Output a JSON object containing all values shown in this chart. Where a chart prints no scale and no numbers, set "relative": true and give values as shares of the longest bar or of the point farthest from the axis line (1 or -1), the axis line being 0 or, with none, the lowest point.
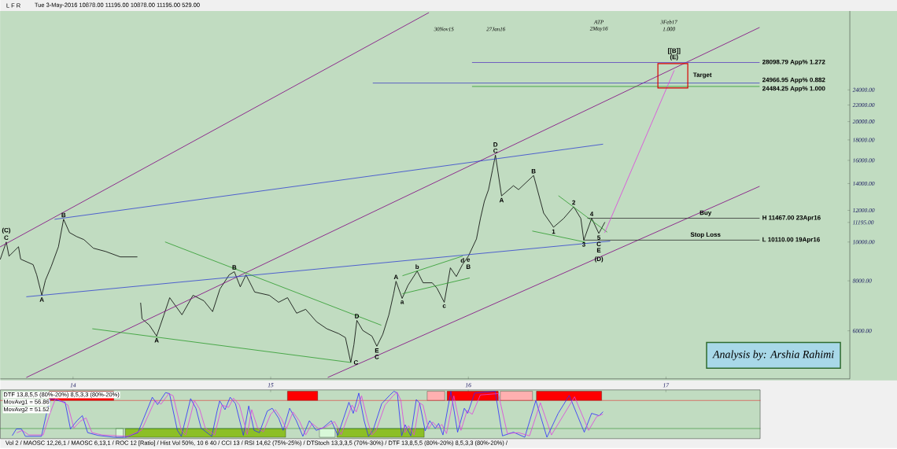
{
  "chart_data": [
    {
      "type": "line",
      "log": "y",
      "xlim": [
        13.632,
        17.93
      ],
      "ylim": [
        4550,
        37800
      ],
      "tick_labels": "y",
      "xticks": [
        14,
        15,
        16,
        17
      ],
      "yticks": [
        {
          "value": 6000,
          "label": "6000.00"
        },
        {
          "value": 8000,
          "label": "8000.00"
        },
        {
          "value": 10000,
          "label": "10000.00"
        },
        {
          "value": 11195,
          "label": "11195.00"
        },
        {
          "value": 12000,
          "label": "12000.00"
        },
        {
          "value": 14000,
          "label": "14000.00"
        },
        {
          "value": 16000,
          "label": "16000.00"
        },
        {
          "value": 18000,
          "label": "18000.00"
        },
        {
          "value": 20000,
          "label": "20000.00"
        },
        {
          "value": 22000,
          "label": "22000.00"
        },
        {
          "value": 24000,
          "label": "24000.00"
        }
      ],
      "series": [
        {
          "color": "#000000",
          "x": [
            13.632,
            13.662,
            13.676,
            13.724,
            13.735,
            13.798,
            13.816,
            13.842,
            13.86,
            13.89,
            13.926,
            13.952,
            13.982,
            14.018,
            14.055,
            14.103,
            14.165,
            14.239,
            14.324,
            14.331,
            14.342,
            14.349,
            14.386,
            14.423,
            14.46,
            14.489,
            14.551,
            14.607,
            14.662,
            14.706,
            14.743,
            14.79,
            14.816,
            14.846,
            14.875,
            14.919,
            14.993,
            15.04,
            15.085,
            15.131,
            15.177,
            15.232,
            15.284,
            15.345,
            15.378,
            15.405,
            15.421,
            15.436,
            15.466,
            15.512,
            15.537,
            15.567,
            15.598,
            15.622,
            15.634,
            15.665,
            15.695,
            15.741,
            15.771,
            15.817,
            15.841,
            15.878,
            15.909,
            15.939,
            15.97,
            16.0,
            16.041,
            16.061,
            16.081,
            16.102,
            16.122,
            16.137,
            16.168,
            16.228,
            16.254,
            16.33,
            16.381,
            16.431,
            16.482,
            16.533,
            16.569,
            16.584,
            16.624,
            16.66,
            16.69
          ],
          "values": [
            9060,
            10000,
            9220,
            9730,
            9060,
            8780,
            8280,
            7360,
            8020,
            8700,
            9730,
            11400,
            10560,
            10320,
            10140,
            9650,
            9470,
            9180,
            9180,
            null,
            7040,
            6430,
            6200,
            5820,
            6580,
            7260,
            6580,
            7360,
            7130,
            6700,
            7630,
            8280,
            8430,
            7730,
            8280,
            7500,
            7360,
            7070,
            7260,
            6640,
            6790,
            6320,
            6070,
            5900,
            5770,
            5000,
            5540,
            6370,
            6010,
            5820,
            5490,
            5880,
            6580,
            7430,
            7980,
            7230,
            7800,
            8460,
            7910,
            7910,
            7670,
            7070,
            8620,
            8200,
            8780,
            9220,
            10180,
            11450,
            12640,
            13520,
            15130,
            16490,
            13040,
            13830,
            13520,
            14670,
            11810,
            10890,
            11450,
            12250,
            11450,
            10110,
            11467,
            10510,
            11195
          ]
        },
        {
          "color": "#800080",
          "x": [
            13.632,
            15.799
          ],
          "values": [
            9730,
            37420
          ]
        },
        {
          "color": "#800080",
          "x": [
            13.765,
            17.472
          ],
          "values": [
            4590,
            34360
          ]
        },
        {
          "color": "#800080",
          "x": [
            15.29,
            17.472
          ],
          "values": [
            4590,
            13770
          ]
        },
        {
          "color": "#3040d0",
          "x": [
            13.908,
            16.68
          ],
          "values": [
            11400,
            17560
          ]
        },
        {
          "color": "#3040d0",
          "x": [
            13.765,
            16.716
          ],
          "values": [
            7300,
            10050
          ]
        },
        {
          "color": "#2a9a2a",
          "x": [
            14.099,
            15.405
          ],
          "values": [
            6070,
            5000
          ]
        },
        {
          "color": "#2a9a2a",
          "x": [
            14.467,
            15.558
          ],
          "values": [
            10000,
            6200
          ]
        },
        {
          "color": "#2a9a2a",
          "x": [
            15.668,
            15.97
          ],
          "values": [
            8240,
            9220
          ]
        },
        {
          "color": "#2a9a2a",
          "x": [
            15.668,
            16.005
          ],
          "values": [
            7430,
            8130
          ]
        },
        {
          "color": "#2a9a2a",
          "x": [
            16.457,
            16.701
          ],
          "values": [
            13040,
            10600
          ]
        },
        {
          "color": "#2a9a2a",
          "x": [
            16.325,
            16.589
          ],
          "values": [
            10650,
            10000
          ]
        },
        {
          "color": "#5b3fc0",
          "x": [
            16.02,
            17.472
          ],
          "values": [
            28098.79,
            28098.79
          ]
        },
        {
          "color": "#4040c0",
          "x": [
            15.518,
            17.472
          ],
          "values": [
            24966.95,
            24966.95
          ]
        },
        {
          "color": "#2a9a2a",
          "x": [
            16.02,
            17.472
          ],
          "values": [
            24484.25,
            24484.25
          ]
        },
        {
          "color": "#303030",
          "x": [
            16.604,
            17.472
          ],
          "values": [
            11467,
            11467
          ]
        },
        {
          "color": "#303030",
          "x": [
            16.584,
            17.472
          ],
          "values": [
            10110,
            10110
          ]
        },
        {
          "color": "#e040e0",
          "x": [
            16.69,
            17.041
          ],
          "values": [
            10560,
            26820
          ]
        }
      ],
      "annotations": [
        "L F R",
        "Tue 3-May-2016   10878.00   11195.00   10878.00   11195.00   529.00",
        "Analysis by: Arshia Rahimi",
        "30Nov15",
        "27Jan16",
        "ATP",
        "2May16",
        "3Feb17",
        "1.000",
        "Target",
        "(D)",
        {
          "text": "C",
          "x": 13.662,
          "y": 10000
        },
        {
          "text": "(C)",
          "x": 13.662,
          "y": 10000
        },
        {
          "text": "B",
          "x": 13.952,
          "y": 11400
        },
        {
          "text": "A",
          "x": 13.842,
          "y": 7360
        },
        {
          "text": "A",
          "x": 14.423,
          "y": 5820
        },
        {
          "text": "B",
          "x": 14.816,
          "y": 8430
        },
        {
          "text": "C",
          "x": 15.405,
          "y": 5000
        },
        {
          "text": "D",
          "x": 15.436,
          "y": 6370
        },
        {
          "text": "E",
          "x": 15.537,
          "y": 5490
        },
        {
          "text": "C",
          "x": 15.537,
          "y": 5490
        },
        {
          "text": "A",
          "x": 15.634,
          "y": 7980
        },
        {
          "text": "a",
          "x": 15.665,
          "y": 7230
        },
        {
          "text": "b",
          "x": 15.741,
          "y": 8460
        },
        {
          "text": "c",
          "x": 15.878,
          "y": 7070
        },
        {
          "text": "d",
          "x": 15.97,
          "y": 8780
        },
        {
          "text": "e",
          "x": 16.0,
          "y": 9220
        },
        {
          "text": "B",
          "x": 16.0,
          "y": 9220
        },
        {
          "text": "C",
          "x": 16.137,
          "y": 16490
        },
        {
          "text": "D",
          "x": 16.137,
          "y": 16490
        },
        {
          "text": "A",
          "x": 16.168,
          "y": 13040
        },
        {
          "text": "B",
          "x": 16.33,
          "y": 14670
        },
        {
          "text": "1",
          "x": 16.431,
          "y": 10890
        },
        {
          "text": "2",
          "x": 16.533,
          "y": 12250
        },
        {
          "text": "3",
          "x": 16.584,
          "y": 10110
        },
        {
          "text": "4",
          "x": 16.624,
          "y": 11467
        },
        {
          "text": "5",
          "x": 16.66,
          "y": 10510
        },
        {
          "text": "C",
          "x": 16.66,
          "y": 10510
        },
        {
          "text": "E",
          "x": 16.66,
          "y": 10510
        },
        {
          "text": "(E)",
          "x": 17.041,
          "y": 28098.79
        },
        {
          "text": "[[B]]",
          "x": 17.041,
          "y": 28098.79
        },
        {
          "text": "Buy",
          "x": 17.2,
          "y": 11467
        },
        {
          "text": "Stop Loss",
          "x": 17.2,
          "y": 10110
        },
        {
          "text": "H 11467.00 23Apr16",
          "x": 17.472,
          "y": 11467
        },
        {
          "text": "L 10110.00 19Apr16",
          "x": 17.472,
          "y": 10110
        },
        {
          "text": "28098.79 App% 1.272",
          "x": 17.472,
          "y": 28098.79
        },
        {
          "text": "24966.95 App% 0.882",
          "x": 17.472,
          "y": 24966.95
        },
        {
          "text": "24484.25 App% 1.000",
          "x": 17.472,
          "y": 24484.25
        }
      ]
    },
    {
      "type": "line",
      "relative": true,
      "xlim": [
        13.632,
        17.477
      ],
      "xticks": [
        14,
        15,
        16,
        17
      ],
      "series": [
        {
          "color": "#2b2bff",
          "x": [
            13.693,
            13.713,
            13.739,
            13.759,
            13.84,
            13.866,
            13.886,
            13.96,
            13.987,
            14.02,
            14.047,
            14.074,
            14.127,
            14.207,
            14.267,
            14.328,
            14.401,
            14.428,
            14.468,
            14.488,
            14.528,
            14.548,
            14.595,
            14.622,
            14.648,
            14.702,
            14.729,
            14.742,
            14.769,
            14.795,
            14.822,
            14.862,
            14.889,
            14.916,
            14.943,
            14.983,
            15.008,
            15.041,
            15.063,
            15.096,
            15.13,
            15.163,
            15.196,
            15.23,
            15.263,
            15.307,
            15.34,
            15.396,
            15.418,
            15.446,
            15.473,
            15.495,
            15.518,
            15.562,
            15.604,
            15.624,
            15.641,
            15.663,
            15.681,
            15.709,
            15.737,
            15.754,
            15.782,
            15.805,
            15.833,
            15.85,
            15.872,
            15.912,
            15.946,
            15.98,
            15.997,
            16.032,
            16.136,
            16.173,
            16.229,
            16.286,
            16.342,
            16.398,
            16.455,
            16.511,
            16.587,
            16.624,
            16.662,
            16.681
          ],
          "values": [
            0.04,
            0.18,
            0.18,
            0.02,
            0.02,
            0.52,
            0.84,
            0.76,
            0.18,
            0.36,
            0.47,
            0.1,
            0.04,
            0,
            0,
            0.1,
            0.87,
            0.71,
            0.97,
            0.95,
            0.15,
            0.02,
            0.84,
            0.63,
            0.2,
            0.02,
            0.57,
            0.79,
            0.6,
            0.87,
            0.73,
            0.04,
            0.68,
            0.15,
            0.1,
            0.57,
            0.63,
            0.41,
            0.15,
            0.63,
            0.36,
            0.02,
            0.36,
            0.15,
            0.2,
            0.36,
            0.04,
            0.76,
            0.52,
            0.96,
            0.36,
            0.02,
            0.15,
            0.73,
            0.92,
            1,
            0.96,
            0.03,
            0.27,
            0.03,
            0.82,
            0.74,
            0.14,
            0.36,
            0.19,
            0.3,
            0.05,
            1,
            0.11,
            0.63,
            0.52,
            0.96,
            1,
            0.03,
            0.11,
            0,
            0.8,
            0,
            0.52,
            0.91,
            0.11,
            0.52,
            0.47,
            0.55
          ]
        },
        {
          "color": "#e040e0",
          "x": [
            13.717,
            13.743,
            13.776,
            13.849,
            13.882,
            13.912,
            13.974,
            14.004,
            14.037,
            14.066,
            14.096,
            14.147,
            14.276,
            14.346,
            14.415,
            14.445,
            14.485,
            14.507,
            14.548,
            14.57,
            14.614,
            14.64,
            14.669,
            14.717,
            14.754,
            14.787,
            14.812,
            14.842,
            14.882,
            14.904,
            14.934,
            14.963,
            15.0,
            15.024,
            15.055,
            15.079,
            15.113,
            15.146,
            15.177,
            15.21,
            15.244,
            15.277,
            15.323,
            15.357,
            15.412,
            15.433,
            15.46,
            15.491,
            15.512,
            15.534,
            15.579,
            15.619,
            15.64,
            15.659,
            15.68,
            15.698,
            15.726,
            15.753,
            15.771,
            15.799,
            15.82,
            15.848,
            15.866,
            15.89,
            15.927,
            15.963,
            15.994,
            16.02,
            16.061,
            16.152,
            16.198,
            16.254,
            16.31,
            16.365,
            16.421,
            16.482,
            16.538,
            16.609,
            16.65,
            16.68
          ],
          "values": [
            0.1,
            0.15,
            0.05,
            0.05,
            0.5,
            0.85,
            0.7,
            0.2,
            0.35,
            0.42,
            0.1,
            0.05,
            0.02,
            0.15,
            0.8,
            0.72,
            0.95,
            0.9,
            0.15,
            0.05,
            0.8,
            0.62,
            0.2,
            0.05,
            0.7,
            0.65,
            0.85,
            0.7,
            0.06,
            0.6,
            0.2,
            0.12,
            0.5,
            0.6,
            0.4,
            0.18,
            0.55,
            0.35,
            0.05,
            0.3,
            0.18,
            0.22,
            0.34,
            0.06,
            0.7,
            0.55,
            0.9,
            0.35,
            0.05,
            0.15,
            0.7,
            0.9,
            0.98,
            0.8,
            0.1,
            0.25,
            0.05,
            0.75,
            0.7,
            0.18,
            0.33,
            0.2,
            0.28,
            0.08,
            0.9,
            0.15,
            0.58,
            0.5,
            0.92,
            0.95,
            0.08,
            0.1,
            0.03,
            0.75,
            0.05,
            0.48,
            0.88,
            0.15,
            0.45,
            0.5
          ]
        }
      ],
      "ref_lines": [
        {
          "axis": "y",
          "value": 0.8,
          "color": "#e03030"
        },
        {
          "axis": "y",
          "value": 0.19,
          "color": "#2a8a2a"
        }
      ],
      "bands": [
        {
          "axis": "x",
          "from": 13.879,
          "to": 14.206,
          "color": "#ff0000"
        },
        {
          "axis": "x",
          "from": 15.085,
          "to": 15.238,
          "color": "#ff0000"
        },
        {
          "axis": "x",
          "from": 15.792,
          "to": 15.881,
          "color": "#ffb0b0"
        },
        {
          "axis": "x",
          "from": 15.893,
          "to": 16.152,
          "color": "#ff0000"
        },
        {
          "axis": "x",
          "from": 16.162,
          "to": 16.325,
          "color": "#ffb0b0"
        },
        {
          "axis": "x",
          "from": 16.345,
          "to": 16.675,
          "color": "#ff0000"
        },
        {
          "axis": "x",
          "from": 14.217,
          "to": 14.254,
          "color": "#d8f8d8"
        },
        {
          "axis": "x",
          "from": 14.265,
          "to": 15.076,
          "color": "#8cbf26"
        },
        {
          "axis": "x",
          "from": 15.247,
          "to": 15.326,
          "color": "#d8f8d8"
        },
        {
          "axis": "x",
          "from": 15.336,
          "to": 15.777,
          "color": "#8cbf26"
        }
      ],
      "annotations": [
        "DTF 13,8,5,5 (80%-20%) 8,5,3,3 (80%-20%)",
        "MovAvg1 = 56.86",
        "MovAvg2 = 51.52",
        "Vol 2 / MAOSC 12,26,1 / MAOSC 6,13,1 / ROC 12 [Ratio] / Hist Vol 50%, 10 6 40 / CCI 13 / RSI 14,62 (75%-25%) / DTStoch 13,3,3,5 (70%-30%) / DTF 13,8,5,5 (80%-20%) 8,5,3,3 (80%-20%) /"
      ]
    }
  ]
}
